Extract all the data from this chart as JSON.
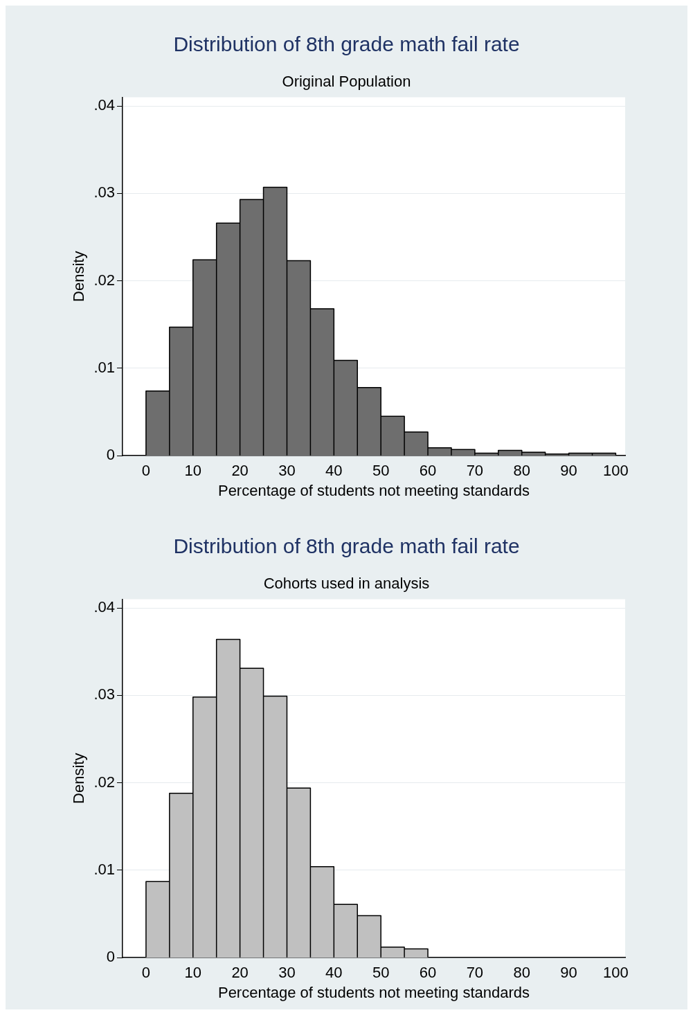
{
  "chart_data": [
    {
      "type": "histogram",
      "title": "Distribution of 8th grade math fail rate",
      "subtitle": "Original Population",
      "xlabel": "Percentage of students not meeting standards",
      "ylabel": "Density",
      "bins": [
        0,
        5,
        10,
        15,
        20,
        25,
        30,
        35,
        40,
        45,
        50,
        55,
        60,
        65,
        70,
        75,
        80,
        85,
        90,
        95,
        100
      ],
      "values": [
        0.0074,
        0.0147,
        0.0224,
        0.0266,
        0.0293,
        0.0307,
        0.0223,
        0.0168,
        0.0109,
        0.0078,
        0.0045,
        0.0027,
        0.0009,
        0.0007,
        0.0003,
        0.0006,
        0.0004,
        0.0002,
        0.0003,
        0.0003
      ],
      "color": "#6e6e6e",
      "xlim": [
        -5,
        102
      ],
      "xticks": [
        0,
        10,
        20,
        30,
        40,
        50,
        60,
        70,
        80,
        90,
        100
      ],
      "ylim": [
        0,
        0.041
      ],
      "yticks": [
        0,
        {
          "value": 0.01,
          "label": ".01"
        },
        {
          "value": 0.02,
          "label": ".02"
        },
        {
          "value": 0.03,
          "label": ".03"
        },
        {
          "value": 0.04,
          "label": ".04"
        }
      ],
      "grid": "y",
      "legend": false
    },
    {
      "type": "histogram",
      "title": "Distribution of 8th grade math fail rate",
      "subtitle": "Cohorts used in analysis",
      "xlabel": "Percentage of students not meeting standards",
      "ylabel": "Density",
      "bins": [
        0,
        5,
        10,
        15,
        20,
        25,
        30,
        35,
        40,
        45,
        50,
        55,
        60
      ],
      "values": [
        0.0087,
        0.0188,
        0.0298,
        0.0364,
        0.0331,
        0.0299,
        0.0194,
        0.0104,
        0.0061,
        0.0048,
        0.0012,
        0.001
      ],
      "color": "#c0c0c0",
      "xlim": [
        -5,
        102
      ],
      "xticks": [
        0,
        10,
        20,
        30,
        40,
        50,
        60,
        70,
        80,
        90,
        100
      ],
      "ylim": [
        0,
        0.041
      ],
      "yticks": [
        0,
        {
          "value": 0.01,
          "label": ".01"
        },
        {
          "value": 0.02,
          "label": ".02"
        },
        {
          "value": 0.03,
          "label": ".03"
        },
        {
          "value": 0.04,
          "label": ".04"
        }
      ],
      "grid": "y",
      "legend": false
    }
  ]
}
